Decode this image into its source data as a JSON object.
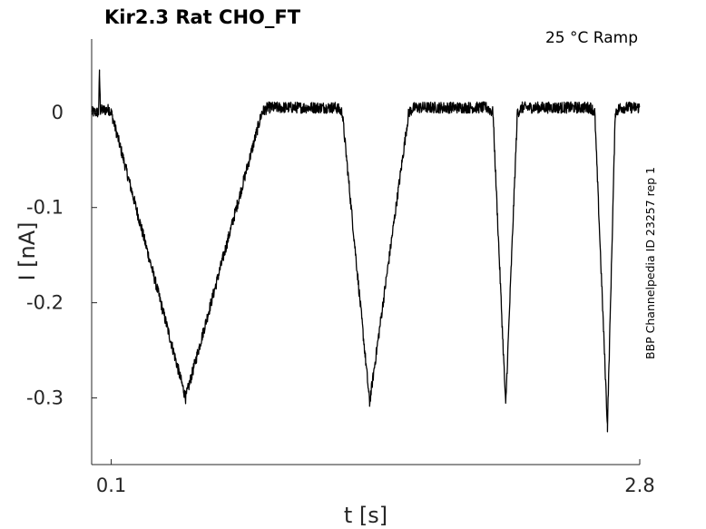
{
  "chart_data": {
    "type": "line",
    "title": "Kir2.3  Rat  CHO_FT",
    "subtitle": "25 °C  Ramp",
    "side_note": "BBP Channelpedia ID 23257 rep 1",
    "xlabel": "t [s]",
    "ylabel": "I [nA]",
    "xlim": [
      0.0,
      2.8
    ],
    "ylim": [
      -0.37,
      0.077
    ],
    "x_ticks": [
      0.1,
      2.8
    ],
    "x_tick_labels": [
      "0.1",
      "2.8"
    ],
    "y_ticks": [
      0,
      -0.1,
      -0.2,
      -0.3
    ],
    "y_tick_labels": [
      "0",
      "-0.1",
      "-0.2",
      "-0.3"
    ],
    "grid": false,
    "line_color": "#000000",
    "noise_amplitude": 0.006,
    "series": [
      {
        "x": [
          0.0,
          0.035,
          0.04,
          0.045,
          0.09,
          0.1,
          0.48,
          0.87,
          0.9,
          1.25,
          1.28,
          1.42,
          1.62,
          1.65,
          2.02,
          2.05,
          2.115,
          2.175,
          2.2,
          2.55,
          2.57,
          2.635,
          2.675,
          2.7,
          2.8
        ],
        "y": [
          0.0,
          0.0,
          0.04,
          0.002,
          0.003,
          0.0,
          -0.3,
          0.0,
          0.005,
          0.005,
          0.0,
          -0.305,
          0.0,
          0.005,
          0.005,
          0.0,
          -0.308,
          0.0,
          0.005,
          0.005,
          0.0,
          -0.33,
          0.0,
          0.005,
          0.005
        ]
      }
    ]
  }
}
